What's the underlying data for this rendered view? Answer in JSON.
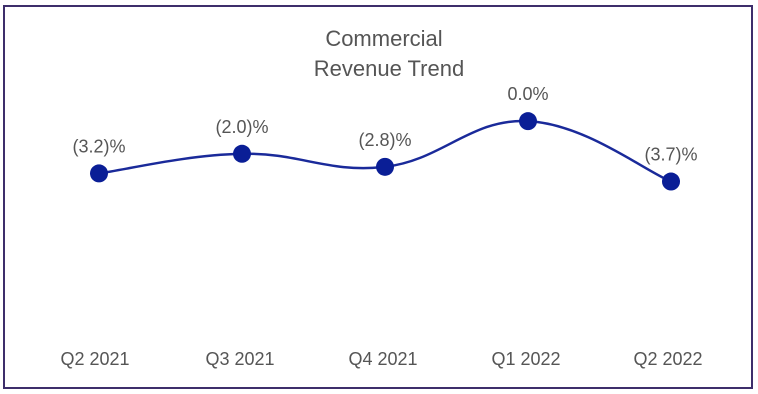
{
  "chart_data": {
    "type": "line",
    "title_lines": [
      "Commercial",
      "Revenue Trend"
    ],
    "categories": [
      "Q2 2021",
      "Q3 2021",
      "Q4 2021",
      "Q1 2022",
      "Q2 2022"
    ],
    "values": [
      -3.2,
      -2.0,
      -2.8,
      0.0,
      -3.7
    ],
    "data_labels": [
      "(3.2)%",
      "(2.0)%",
      "(2.8)%",
      "0.0%",
      "(3.7)%"
    ],
    "ylim": [
      -12,
      0.5
    ],
    "grid": false,
    "legend": "none",
    "line_color": "#1a2a9a",
    "marker_color": "#0a1e96",
    "border_color": "#3d2e6b"
  }
}
